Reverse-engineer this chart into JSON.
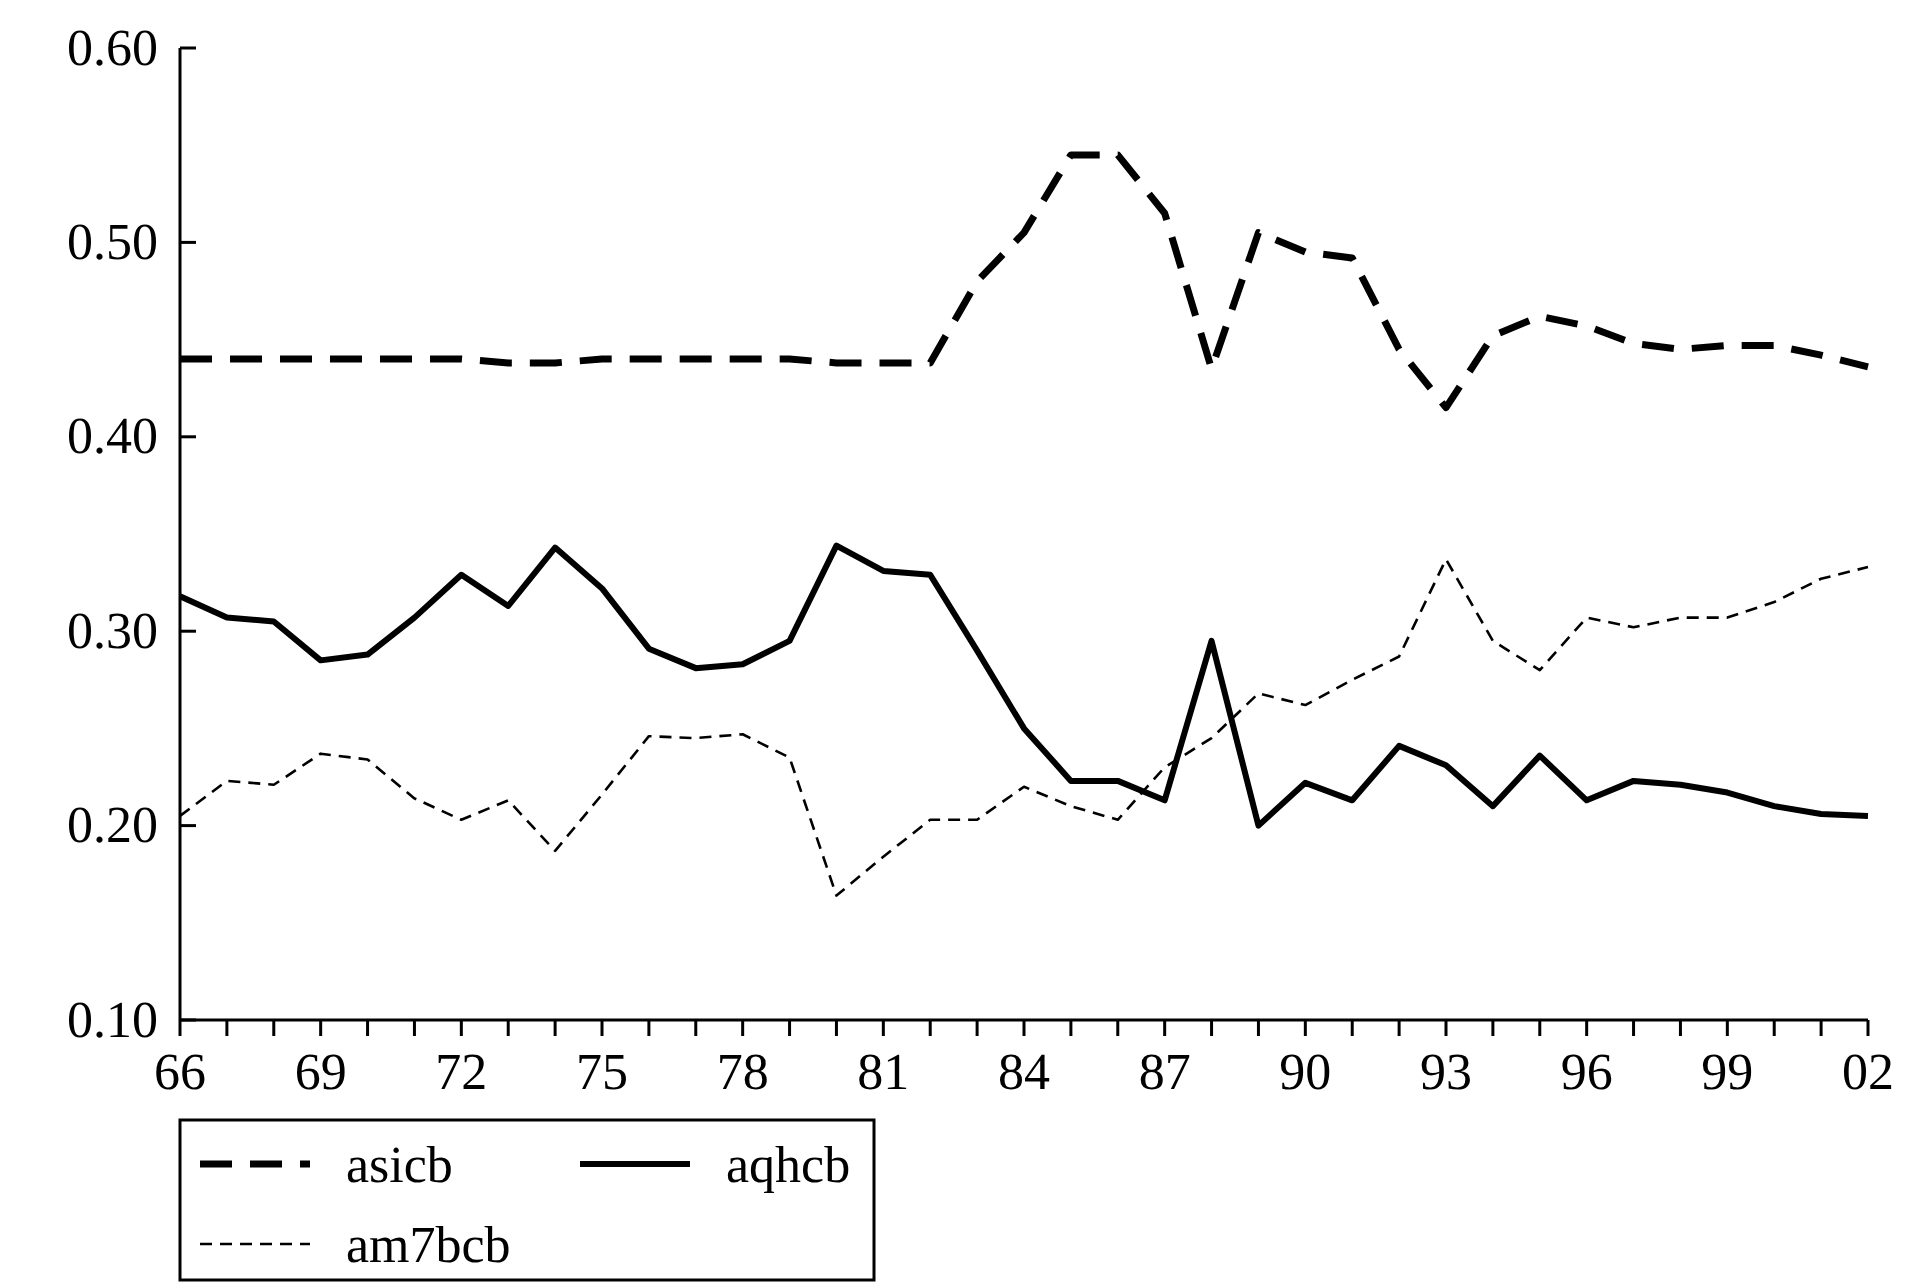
{
  "chart_data": {
    "type": "line",
    "categories": [
      "66",
      null,
      null,
      "69",
      null,
      null,
      "72",
      null,
      null,
      "75",
      null,
      null,
      "78",
      null,
      null,
      "81",
      null,
      null,
      "84",
      null,
      null,
      "87",
      null,
      null,
      "90",
      null,
      null,
      "93",
      null,
      null,
      "96",
      null,
      null,
      "99",
      null,
      null,
      "02"
    ],
    "series": [
      {
        "name": "asicb",
        "color": "#000000",
        "line_style": "dashed",
        "values": [
          0.44,
          0.44,
          0.44,
          0.44,
          0.44,
          0.44,
          0.44,
          0.438,
          0.438,
          0.44,
          0.44,
          0.44,
          0.44,
          0.44,
          0.438,
          0.438,
          0.438,
          0.48,
          0.505,
          0.545,
          0.545,
          0.515,
          0.435,
          0.505,
          0.495,
          0.492,
          0.445,
          0.415,
          0.452,
          0.462,
          0.457,
          0.448,
          0.445,
          0.447,
          0.447,
          0.442,
          0.436
        ]
      },
      {
        "name": "aqhcb",
        "color": "#000000",
        "line_style": "solid",
        "values": [
          0.318,
          0.307,
          0.305,
          0.285,
          0.288,
          0.307,
          0.329,
          0.313,
          0.343,
          0.322,
          0.291,
          0.281,
          0.283,
          0.295,
          0.344,
          0.331,
          0.329,
          0.29,
          0.25,
          0.223,
          0.223,
          0.213,
          0.295,
          0.2,
          0.222,
          0.213,
          0.241,
          0.231,
          0.21,
          0.236,
          0.213,
          0.223,
          0.221,
          0.217,
          0.21,
          0.206,
          0.205
        ]
      },
      {
        "name": "am7bcb",
        "color": "#000000",
        "line_style": "dashed",
        "values": [
          0.205,
          0.223,
          0.221,
          0.237,
          0.234,
          0.214,
          0.203,
          0.213,
          0.187,
          0.216,
          0.246,
          0.245,
          0.247,
          0.235,
          0.164,
          0.184,
          0.203,
          0.203,
          0.22,
          0.21,
          0.203,
          0.23,
          0.245,
          0.268,
          0.262,
          0.275,
          0.287,
          0.337,
          0.295,
          0.28,
          0.307,
          0.302,
          0.307,
          0.307,
          0.315,
          0.327,
          0.333
        ]
      }
    ],
    "ylim": [
      0.1,
      0.6
    ],
    "yticks": [
      {
        "value": 0.1,
        "label": "0.10"
      },
      {
        "value": 0.2,
        "label": "0.20"
      },
      {
        "value": 0.3,
        "label": "0.30"
      },
      {
        "value": 0.4,
        "label": "0.40"
      },
      {
        "value": 0.5,
        "label": "0.50"
      },
      {
        "value": 0.6,
        "label": "0.60"
      }
    ],
    "grid": false,
    "legend": "bottom left"
  }
}
